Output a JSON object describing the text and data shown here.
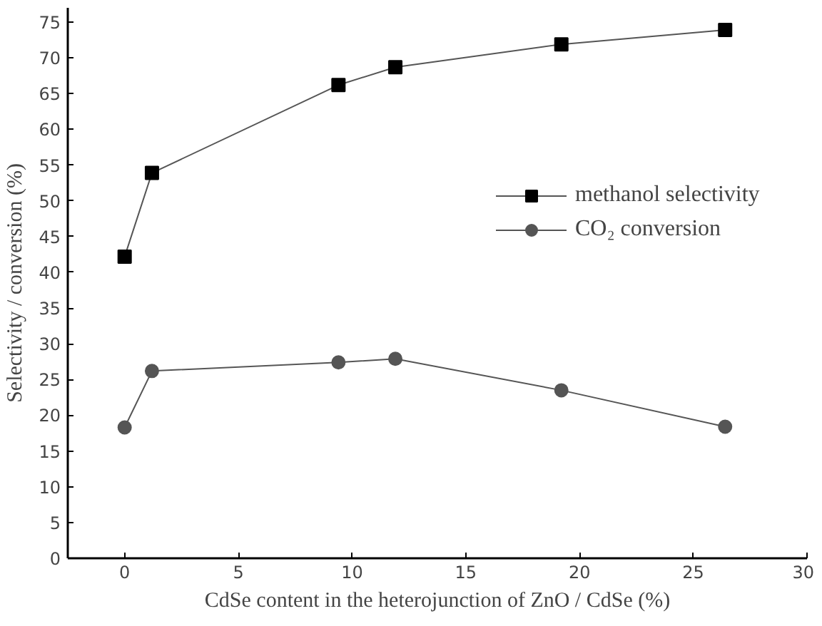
{
  "chart_data": {
    "type": "line",
    "xlabel": "CdSe content in the heterojunction of ZnO / CdSe (%)",
    "ylabel": "Selectivity / conversion (%)",
    "x": [
      0,
      1.2,
      9.4,
      11.9,
      19.2,
      26.4
    ],
    "series": [
      {
        "name": "methanol selectivity",
        "color": "#000000",
        "marker": "square",
        "values": [
          42.2,
          53.9,
          66.2,
          68.7,
          71.9,
          73.9
        ]
      },
      {
        "name": "CO₂ conversion",
        "color": "#555555",
        "marker": "circle",
        "values": [
          18.3,
          26.2,
          27.4,
          27.9,
          23.5,
          18.4
        ]
      }
    ],
    "xlim": [
      -2.5,
      30
    ],
    "ylim": [
      0,
      77
    ],
    "xticks": [
      0,
      5,
      10,
      15,
      20,
      25,
      30
    ],
    "yticks": [
      0,
      5,
      10,
      15,
      20,
      25,
      30,
      35,
      40,
      45,
      50,
      55,
      60,
      65,
      70,
      75
    ],
    "grid": false,
    "legend": "right",
    "line_style": "solid"
  }
}
